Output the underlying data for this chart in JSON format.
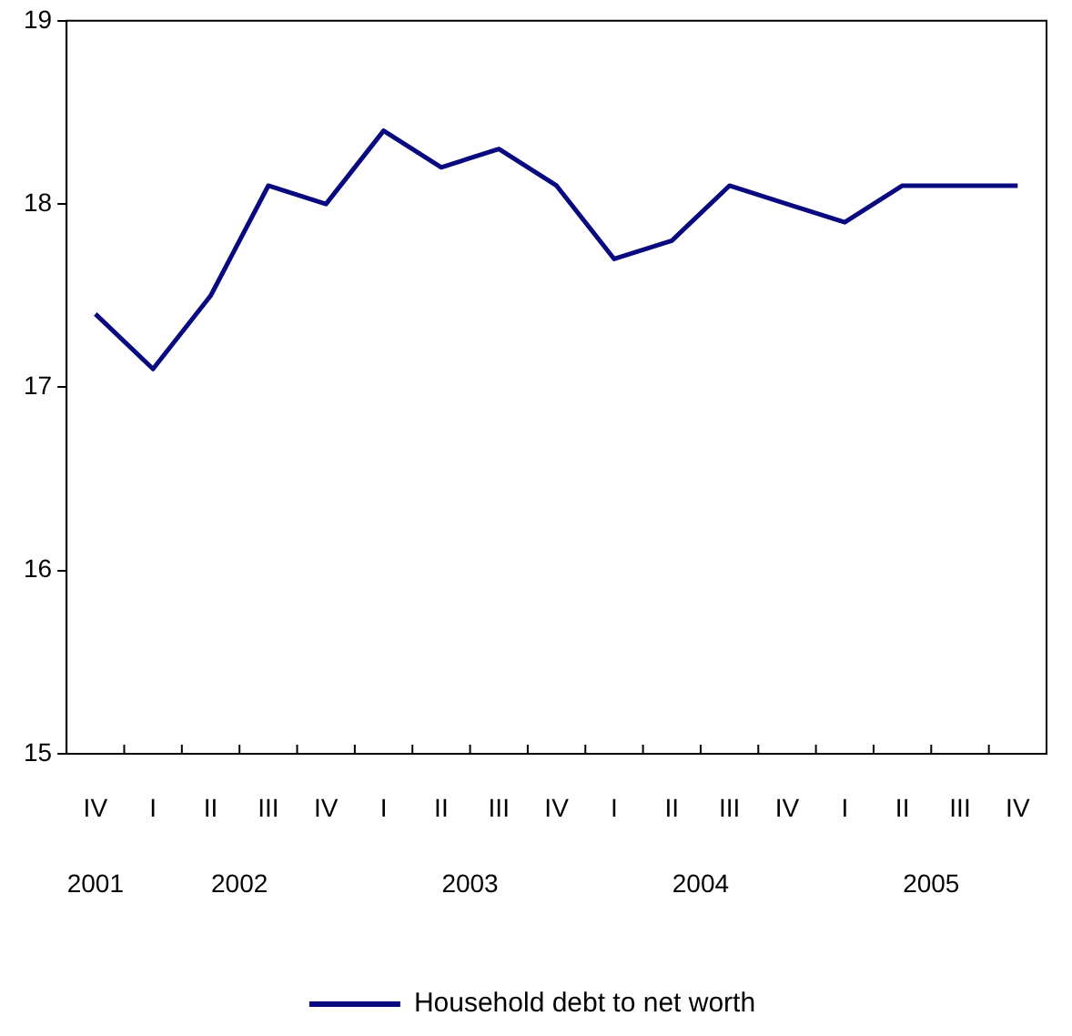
{
  "chart_data": {
    "type": "line",
    "categories": [
      "IV",
      "I",
      "II",
      "III",
      "IV",
      "I",
      "II",
      "III",
      "IV",
      "I",
      "II",
      "III",
      "IV",
      "I",
      "II",
      "III",
      "IV"
    ],
    "series": [
      {
        "name": "Household debt to net worth",
        "color": "#0a0a80",
        "values": [
          17.4,
          17.1,
          17.5,
          18.1,
          18.0,
          18.4,
          18.2,
          18.3,
          18.1,
          17.7,
          17.8,
          18.1,
          18.0,
          17.9,
          18.1,
          18.1,
          18.1
        ]
      }
    ],
    "annotations": [
      "2001",
      "2002",
      "2003",
      "2004",
      "2005"
    ],
    "ylim": [
      15,
      19
    ],
    "yticks": [
      15,
      16,
      17,
      18,
      19
    ],
    "grid": false,
    "legend": "bottom",
    "marker": "none",
    "line_style": "solid"
  }
}
